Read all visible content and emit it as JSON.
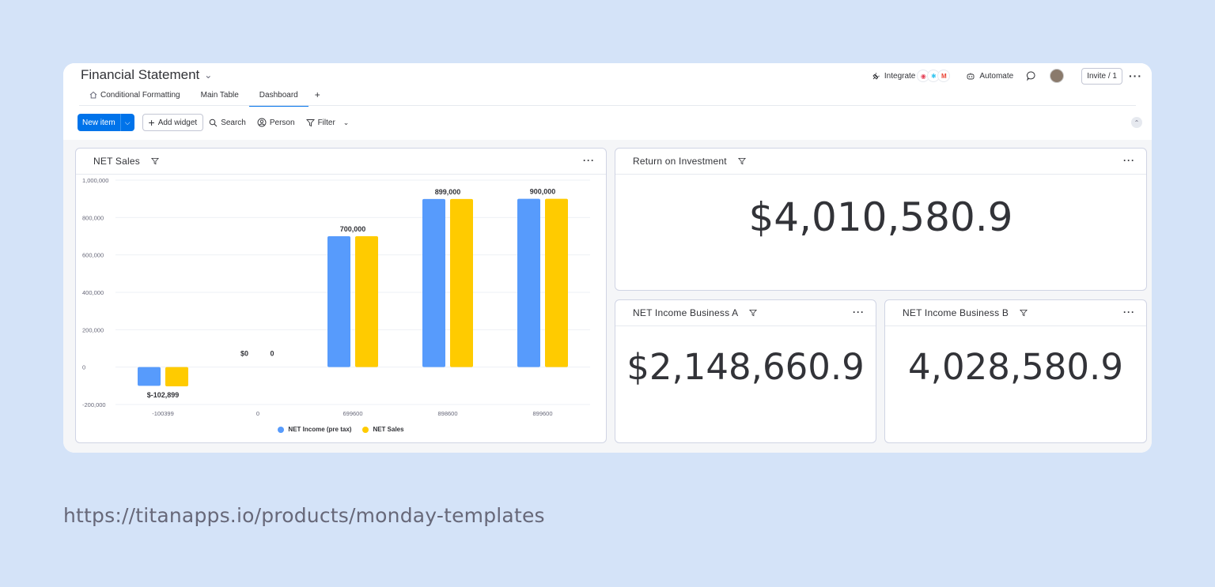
{
  "header": {
    "title": "Financial Statement",
    "tabs": [
      {
        "label": "Conditional Formatting",
        "active": false
      },
      {
        "label": "Main Table",
        "active": false
      },
      {
        "label": "Dashboard",
        "active": true
      }
    ],
    "add_tab": "+",
    "integrate_label": "Integrate",
    "automate_label": "Automate",
    "invite_label": "Invite / 1"
  },
  "toolbar": {
    "new_item": "New item",
    "add_widget": "Add widget",
    "search": "Search",
    "person": "Person",
    "filter": "Filter"
  },
  "widgets": {
    "net_sales": {
      "title": "NET Sales"
    },
    "roi": {
      "title": "Return on Investment",
      "value": "$4,010,580.9"
    },
    "income_a": {
      "title": "NET Income Business A",
      "value": "$2,148,660.9"
    },
    "income_b": {
      "title": "NET Income Business B",
      "value": "4,028,580.9"
    }
  },
  "chart_data": {
    "type": "bar",
    "categories": [
      "-100399",
      "0",
      "699600",
      "898600",
      "899600"
    ],
    "series": [
      {
        "name": "NET Income (pre tax)",
        "color": "#579bfc",
        "values": [
          -100000,
          0,
          700000,
          899000,
          900000
        ]
      },
      {
        "name": "NET Sales",
        "color": "#ffcb00",
        "values": [
          -102899,
          0,
          700000,
          899000,
          900000
        ]
      }
    ],
    "data_labels": [
      "$-102,899",
      "$0",
      "0",
      "700,000",
      "899,000",
      "900,000"
    ],
    "yticks": [
      "1,000,000",
      "800,000",
      "600,000",
      "400,000",
      "200,000",
      "0",
      "-200,000"
    ],
    "ylim": [
      -200000,
      1000000
    ],
    "legend_position": "bottom"
  },
  "caption": "https://titanapps.io/products/monday-templates"
}
